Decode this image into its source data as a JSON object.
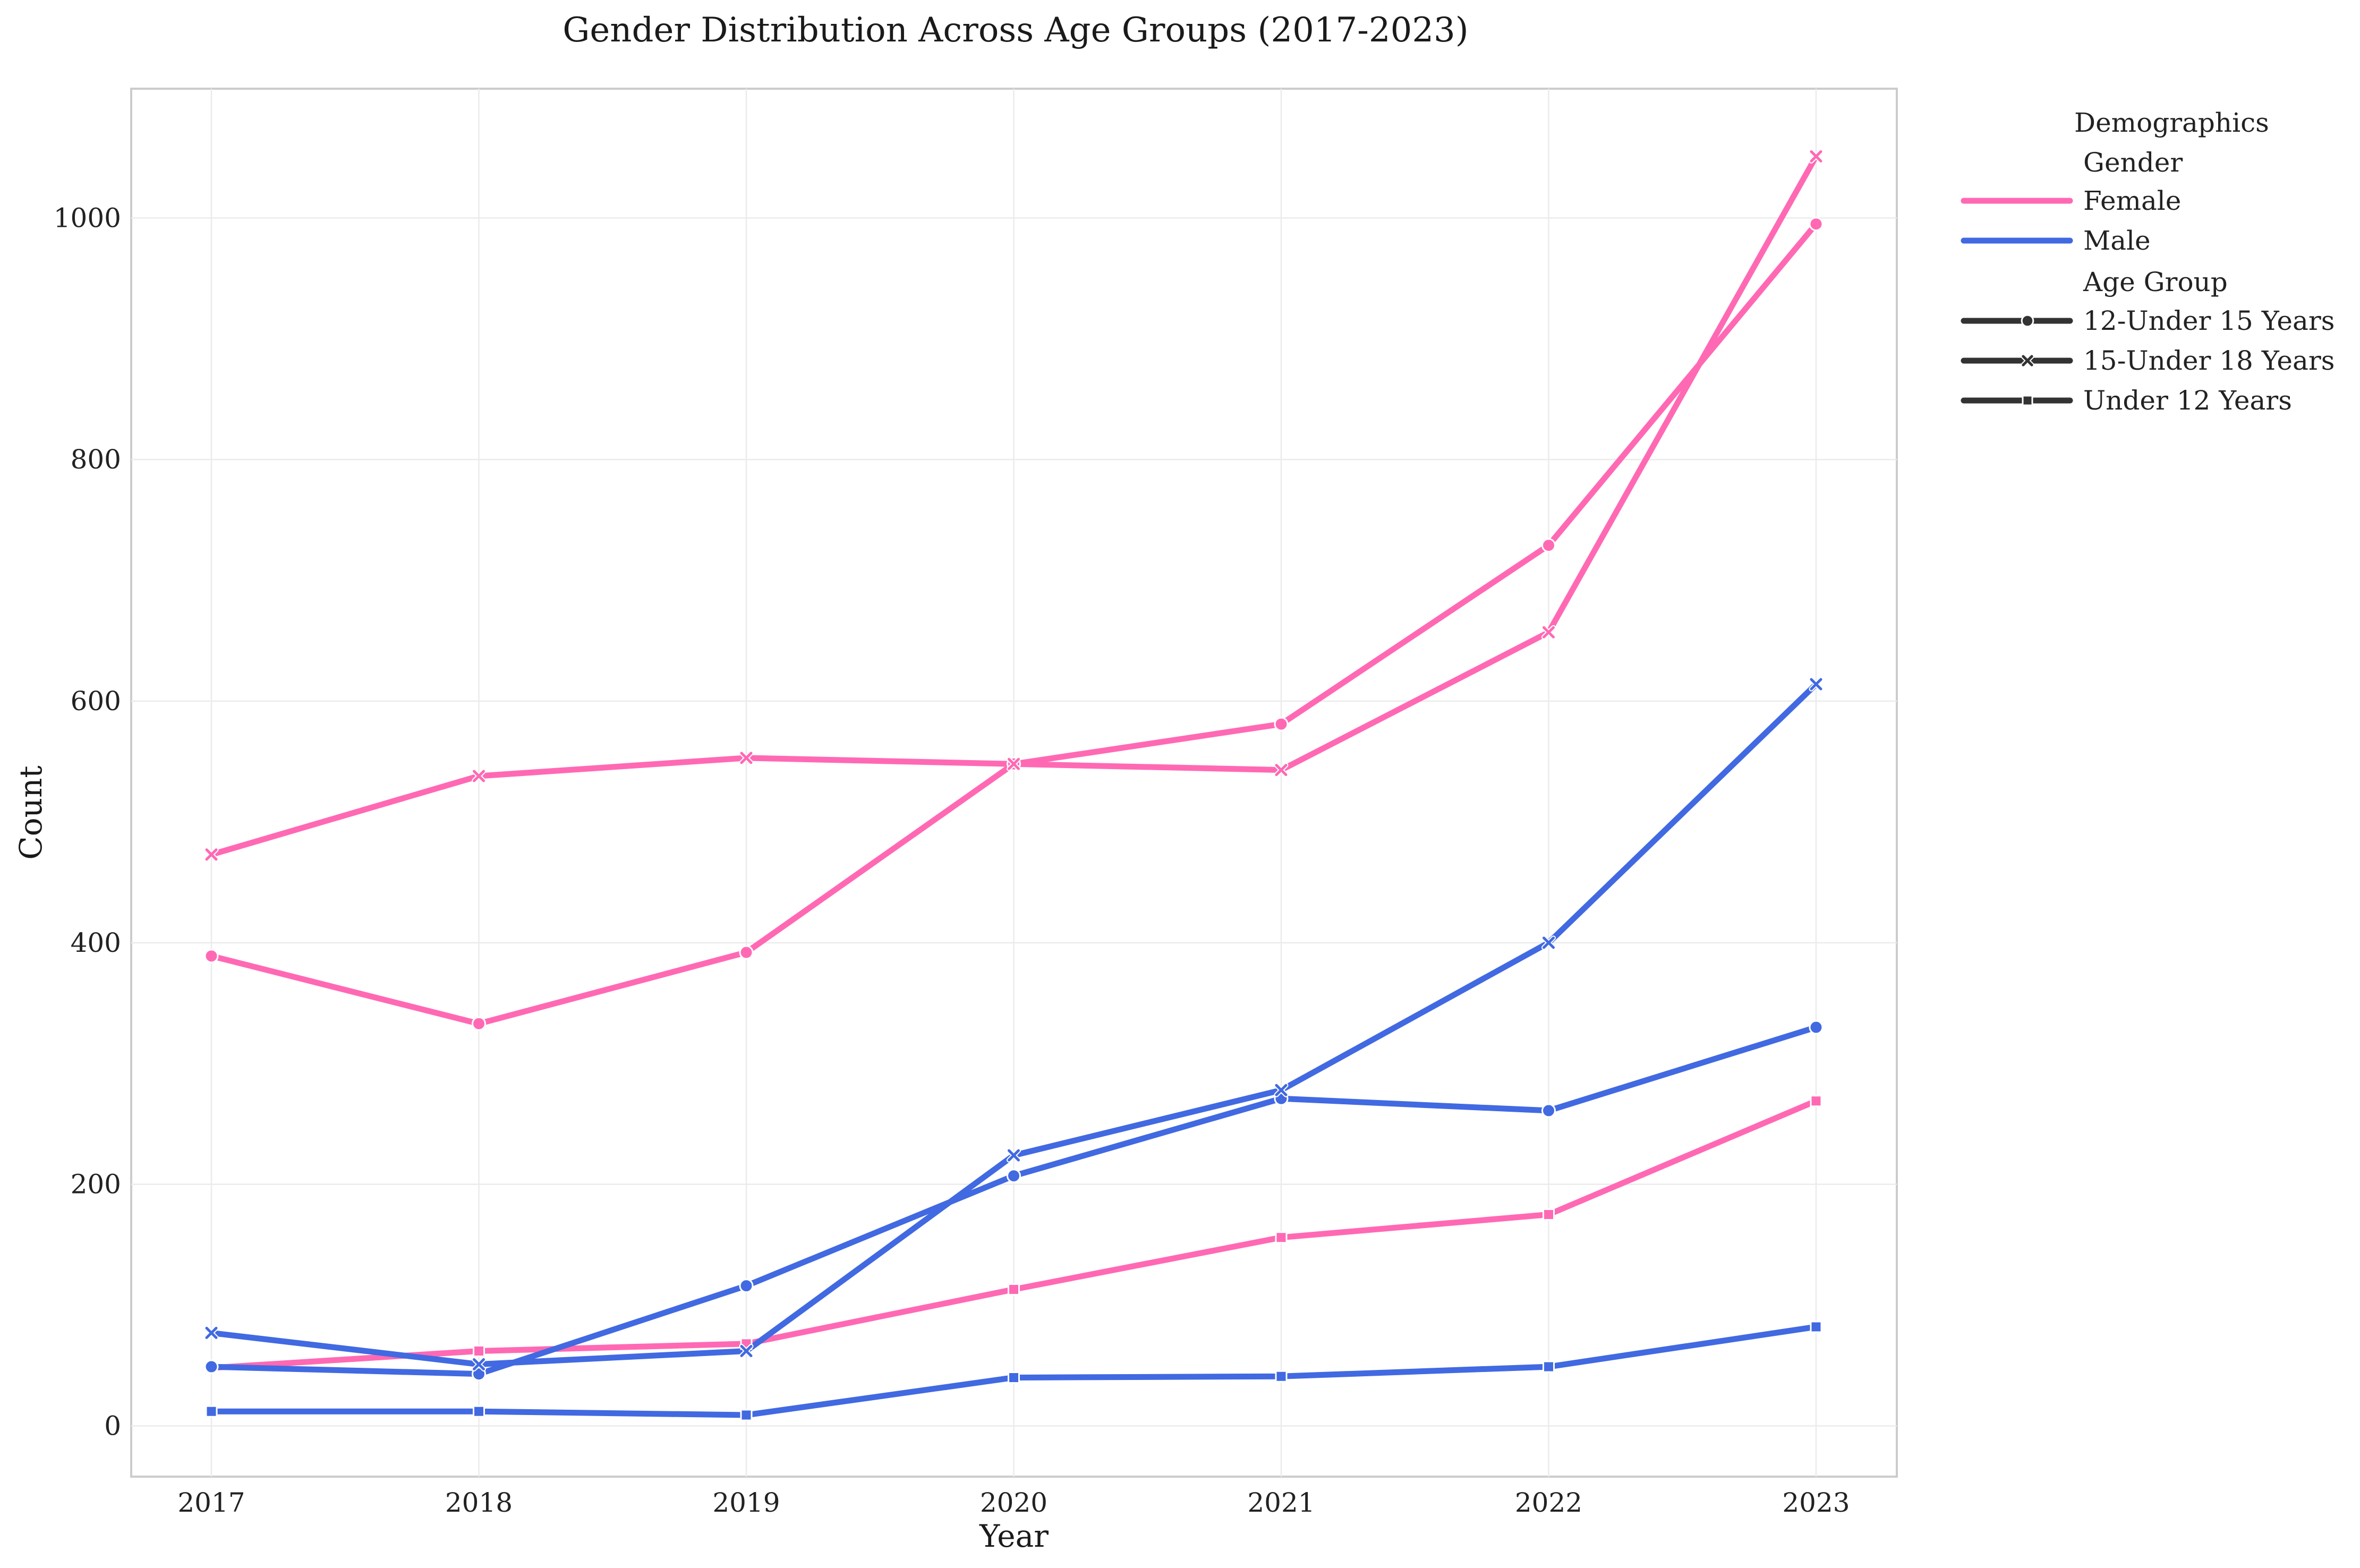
{
  "chart_data": {
    "type": "line",
    "title": "Gender Distribution Across Age Groups (2017-2023)",
    "xlabel": "Year",
    "ylabel": "Count",
    "x": [
      2017,
      2018,
      2019,
      2020,
      2021,
      2022,
      2023
    ],
    "x_tick_labels": [
      "2017",
      "2018",
      "2019",
      "2020",
      "2021",
      "2022",
      "2023"
    ],
    "ylim": [
      -42,
      1107
    ],
    "y_ticks": [
      0,
      200,
      400,
      600,
      800,
      1000
    ],
    "y_tick_labels": [
      "0",
      "200",
      "400",
      "600",
      "800",
      "1000"
    ],
    "grid": true,
    "legend": {
      "title": "Demographics",
      "placement": "outside-right-top",
      "hue_title": "Gender",
      "style_title": "Age Group",
      "hue_entries": [
        {
          "label": "Female",
          "color": "#ff69b4"
        },
        {
          "label": "Male",
          "color": "#4169e1"
        }
      ],
      "style_entries": [
        {
          "label": "12-Under 15 Years",
          "marker": "circle"
        },
        {
          "label": "15-Under 18 Years",
          "marker": "x"
        },
        {
          "label": "Under 12 Years",
          "marker": "square"
        }
      ]
    },
    "series": [
      {
        "gender": "Female",
        "age_group": "12-Under 15 Years",
        "color": "#ff69b4",
        "marker": "circle",
        "values": [
          389,
          333,
          392,
          548,
          581,
          729,
          995
        ]
      },
      {
        "gender": "Female",
        "age_group": "15-Under 18 Years",
        "color": "#ff69b4",
        "marker": "x",
        "values": [
          473,
          538,
          553,
          548,
          543,
          657,
          1051
        ]
      },
      {
        "gender": "Female",
        "age_group": "Under 12 Years",
        "color": "#ff69b4",
        "marker": "square",
        "values": [
          48,
          62,
          68,
          113,
          156,
          175,
          269
        ]
      },
      {
        "gender": "Male",
        "age_group": "12-Under 15 Years",
        "color": "#4169e1",
        "marker": "circle",
        "values": [
          49,
          43,
          116,
          207,
          271,
          261,
          330
        ]
      },
      {
        "gender": "Male",
        "age_group": "15-Under 18 Years",
        "color": "#4169e1",
        "marker": "x",
        "values": [
          77,
          51,
          62,
          224,
          278,
          400,
          614
        ]
      },
      {
        "gender": "Male",
        "age_group": "Under 12 Years",
        "color": "#4169e1",
        "marker": "square",
        "values": [
          12,
          12,
          9,
          40,
          41,
          49,
          82
        ]
      }
    ]
  }
}
